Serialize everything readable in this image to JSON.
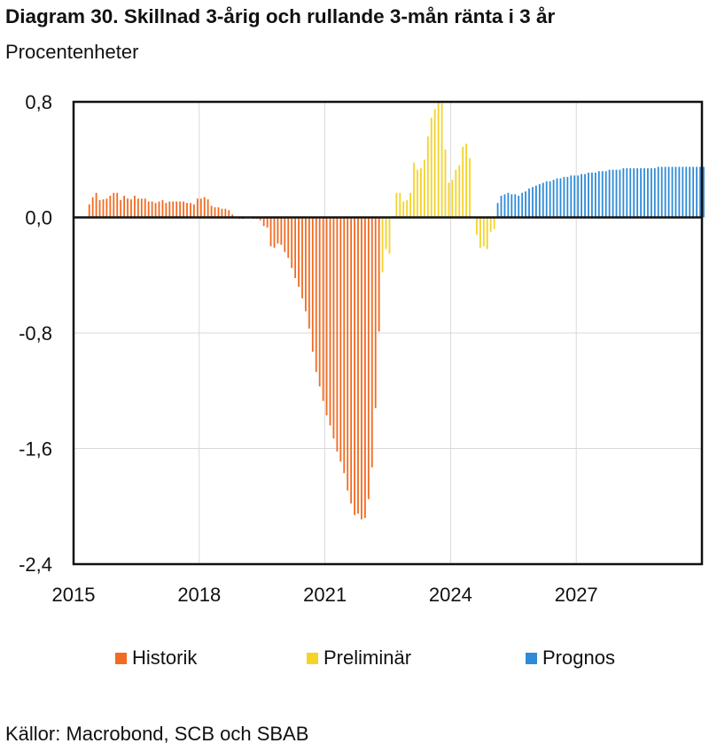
{
  "title": "Diagram 30. Skillnad 3-årig och rullande 3-mån ränta i 3 år",
  "subtitle": "Procentenheter",
  "source": "Källor: Macrobond, SCB och SBAB",
  "chart_data": {
    "type": "bar",
    "xaxis": {
      "type": "date",
      "range": [
        "2015-01",
        "2030-01"
      ],
      "ticks": [
        "2015",
        "2018",
        "2021",
        "2024",
        "2027"
      ]
    },
    "yaxis": {
      "range": [
        -2.4,
        0.8
      ],
      "ticks": [
        "0,8",
        "0,0",
        "-0,8",
        "-1,6",
        "-2,4"
      ],
      "tick_values": [
        0.8,
        0,
        -0.8,
        -1.6,
        -2.4
      ]
    },
    "grid": true,
    "legend_position": "bottom",
    "frequency": "monthly",
    "series": [
      {
        "name": "Historik",
        "color": "#F26B21",
        "start": "2015-05",
        "values": [
          0.09,
          0.14,
          0.17,
          0.12,
          0.125,
          0.13,
          0.15,
          0.17,
          0.17,
          0.12,
          0.15,
          0.13,
          0.125,
          0.15,
          0.13,
          0.13,
          0.13,
          0.11,
          0.11,
          0.1,
          0.11,
          0.12,
          0.1,
          0.11,
          0.11,
          0.11,
          0.11,
          0.11,
          0.1,
          0.1,
          0.09,
          0.13,
          0.13,
          0.14,
          0.125,
          0.08,
          0.07,
          0.07,
          0.06,
          0.06,
          0.05,
          0.02,
          0,
          -0.01,
          -0.01,
          0,
          0,
          -0.01,
          -0.01,
          -0.02,
          -0.06,
          -0.07,
          -0.2,
          -0.21,
          -0.18,
          -0.19,
          -0.24,
          -0.28,
          -0.35,
          -0.42,
          -0.48,
          -0.56,
          -0.65,
          -0.77,
          -0.93,
          -1.07,
          -1.17,
          -1.27,
          -1.37,
          -1.44,
          -1.53,
          -1.62,
          -1.69,
          -1.77,
          -1.89,
          -1.98,
          -2.06,
          -2.05,
          -2.09,
          -2.08,
          -1.95,
          -1.73,
          -1.32,
          -0.79
        ]
      },
      {
        "name": "Preliminär",
        "color": "#F5D327",
        "start": "2022-05",
        "values": [
          -0.38,
          -0.22,
          -0.25,
          0.01,
          0.17,
          0.17,
          0.11,
          0.12,
          0.17,
          0.38,
          0.33,
          0.34,
          0.4,
          0.56,
          0.69,
          0.75,
          0.8,
          0.79,
          0.47,
          0.24,
          0.26,
          0.33,
          0.36,
          0.49,
          0.51,
          0.41,
          0.0,
          -0.12,
          -0.21,
          -0.2,
          -0.22,
          -0.1,
          -0.08
        ]
      },
      {
        "name": "Prognos",
        "color": "#2E8BD8",
        "start": "2025-02",
        "values": [
          0.1,
          0.15,
          0.16,
          0.17,
          0.16,
          0.16,
          0.15,
          0.17,
          0.18,
          0.2,
          0.21,
          0.22,
          0.23,
          0.24,
          0.25,
          0.25,
          0.26,
          0.27,
          0.27,
          0.28,
          0.28,
          0.29,
          0.29,
          0.29,
          0.3,
          0.3,
          0.31,
          0.31,
          0.31,
          0.32,
          0.32,
          0.32,
          0.33,
          0.33,
          0.33,
          0.33,
          0.34,
          0.34,
          0.34,
          0.34,
          0.34,
          0.34,
          0.34,
          0.34,
          0.34,
          0.34,
          0.35,
          0.35,
          0.35,
          0.35,
          0.35,
          0.35,
          0.35,
          0.35,
          0.35,
          0.35,
          0.35,
          0.35,
          0.35,
          0.35
        ]
      }
    ]
  }
}
